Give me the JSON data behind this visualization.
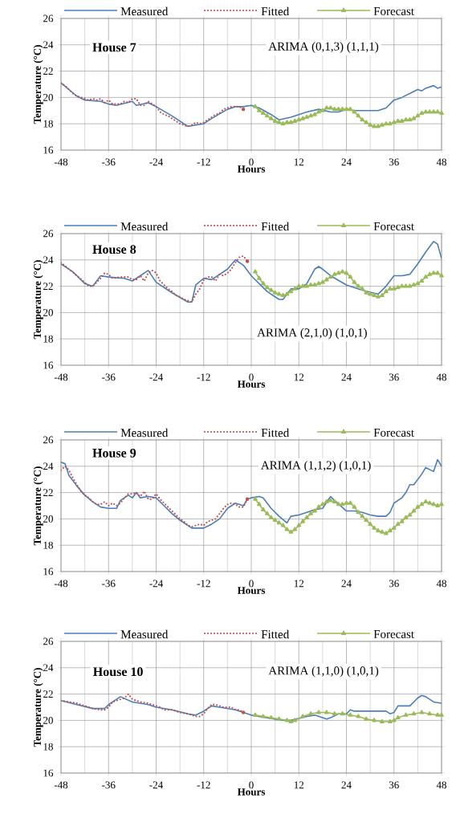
{
  "chart_data": [
    {
      "type": "line",
      "annotations": [
        "House 7",
        "ARIMA (0,1,3) (1,1,1)"
      ],
      "xlabel": "Hours",
      "ylabel": "Temperature (°C)",
      "xlim": [
        -48,
        48
      ],
      "ylim": [
        16,
        26
      ],
      "xticks": [
        -48,
        {
          "value": -42,
          "label": null
        },
        -36,
        {
          "value": -30,
          "label": null
        },
        -24,
        {
          "value": -18,
          "label": null
        },
        -12,
        {
          "value": -6,
          "label": null
        },
        0,
        {
          "value": 6,
          "label": null
        },
        12,
        {
          "value": 18,
          "label": null
        },
        24,
        {
          "value": 30,
          "label": null
        },
        36,
        {
          "value": 42,
          "label": null
        },
        48
      ],
      "yticks": [
        16,
        18,
        20,
        22,
        24,
        26
      ],
      "grid": true,
      "legend": "top",
      "series": [
        {
          "name": "Measured",
          "color": "#4a7ebb",
          "marker": "none",
          "line_style": "solid",
          "x": [
            -48,
            -44,
            -42,
            -38,
            -36,
            -34,
            -30,
            -29,
            -26,
            -24,
            -20,
            -16,
            -14,
            -12,
            -10,
            -6,
            -4,
            -2,
            0,
            2,
            5,
            7,
            10,
            14,
            17,
            20,
            22,
            24,
            26,
            28,
            32,
            34,
            36,
            38,
            40,
            42,
            43,
            44,
            46,
            47,
            48
          ],
          "values": [
            21.1,
            20.1,
            19.8,
            19.7,
            19.5,
            19.4,
            19.7,
            19.4,
            19.6,
            19.3,
            18.6,
            17.8,
            17.9,
            18.0,
            18.4,
            19.1,
            19.3,
            19.3,
            19.4,
            19.2,
            18.7,
            18.3,
            18.5,
            18.9,
            19.1,
            18.9,
            18.9,
            19.1,
            19.0,
            19.0,
            19.0,
            19.2,
            19.8,
            20.0,
            20.3,
            20.6,
            20.5,
            20.7,
            20.9,
            20.7,
            20.8
          ]
        },
        {
          "name": "Fitted",
          "color": "#c0504d",
          "marker": "none",
          "line_style": "dotted",
          "x": [
            -48,
            -47,
            -46,
            -45,
            -44,
            -43,
            -42,
            -41,
            -40,
            -39,
            -38,
            -37,
            -36,
            -35,
            -34,
            -33,
            -32,
            -31,
            -30,
            -29,
            -28,
            -27,
            -26,
            -25,
            -24,
            -23,
            -22,
            -21,
            -20,
            -19,
            -18,
            -17,
            -16,
            -15,
            -14,
            -13,
            -12,
            -11,
            -10,
            -9,
            -8,
            -7,
            -6,
            -5,
            -4,
            -3,
            -2
          ],
          "values": [
            21.1,
            20.9,
            20.6,
            20.3,
            20.1,
            20.0,
            19.9,
            19.8,
            19.9,
            19.8,
            19.9,
            19.6,
            19.8,
            19.5,
            19.5,
            19.5,
            19.7,
            19.6,
            19.9,
            19.9,
            19.4,
            19.4,
            19.7,
            19.5,
            19.3,
            18.9,
            18.7,
            18.6,
            18.4,
            18.2,
            18.0,
            17.9,
            17.8,
            17.9,
            18.1,
            18.0,
            18.1,
            18.3,
            18.5,
            18.7,
            18.8,
            19.1,
            19.2,
            19.3,
            19.3,
            19.3,
            19.1
          ]
        },
        {
          "name": "Forecast",
          "color": "#9bbb59",
          "marker": "triangle",
          "line_style": "solid",
          "x": [
            1,
            2,
            3,
            4,
            5,
            6,
            7,
            8,
            9,
            10,
            11,
            12,
            13,
            14,
            15,
            16,
            17,
            18,
            19,
            20,
            21,
            22,
            23,
            24,
            25,
            26,
            27,
            28,
            29,
            30,
            31,
            32,
            33,
            34,
            35,
            36,
            37,
            38,
            39,
            40,
            41,
            42,
            43,
            44,
            45,
            46,
            47,
            48
          ],
          "values": [
            19.3,
            19.0,
            18.8,
            18.6,
            18.4,
            18.2,
            18.1,
            18.0,
            18.1,
            18.1,
            18.2,
            18.3,
            18.4,
            18.5,
            18.6,
            18.7,
            18.9,
            19.0,
            19.2,
            19.2,
            19.1,
            19.1,
            19.1,
            19.1,
            19.1,
            18.9,
            18.6,
            18.3,
            18.1,
            17.9,
            17.8,
            17.8,
            17.9,
            18.0,
            18.0,
            18.1,
            18.2,
            18.2,
            18.3,
            18.3,
            18.4,
            18.6,
            18.8,
            18.9,
            18.9,
            18.9,
            18.9,
            18.8
          ]
        }
      ]
    },
    {
      "type": "line",
      "annotations": [
        "House 8",
        "ARIMA (2,1,0) (1,0,1)"
      ],
      "xlabel": "Hours",
      "ylabel": "Temperature (°C)",
      "xlim": [
        -48,
        48
      ],
      "ylim": [
        16,
        26
      ],
      "xticks": [
        -48,
        {
          "value": -42,
          "label": null
        },
        -36,
        {
          "value": -30,
          "label": null
        },
        -24,
        {
          "value": -18,
          "label": null
        },
        -12,
        {
          "value": -6,
          "label": null
        },
        0,
        {
          "value": 6,
          "label": null
        },
        12,
        {
          "value": 18,
          "label": null
        },
        24,
        {
          "value": 30,
          "label": null
        },
        36,
        {
          "value": 42,
          "label": null
        },
        48
      ],
      "yticks": [
        16,
        18,
        20,
        22,
        24,
        26
      ],
      "grid": true,
      "legend": "top",
      "series": [
        {
          "name": "Measured",
          "color": "#4a7ebb",
          "marker": "none",
          "line_style": "solid",
          "x": [
            -48,
            -45,
            -42,
            -40,
            -38,
            -36,
            -32,
            -30,
            -28,
            -26,
            -24,
            -20,
            -16,
            -15,
            -14,
            -12,
            -10,
            -6,
            -4,
            -2,
            0,
            2,
            4,
            6,
            7,
            8,
            10,
            12,
            14,
            16,
            17,
            18,
            20,
            24,
            28,
            32,
            34,
            36,
            38,
            40,
            42,
            44,
            46,
            47,
            48
          ],
          "values": [
            23.7,
            23.1,
            22.2,
            22.0,
            22.8,
            22.7,
            22.6,
            22.4,
            22.8,
            23.2,
            22.3,
            21.5,
            20.8,
            20.8,
            22.1,
            22.6,
            22.5,
            23.3,
            24.0,
            23.6,
            22.8,
            22.2,
            21.6,
            21.2,
            21.0,
            21.0,
            21.8,
            21.8,
            22.2,
            23.3,
            23.5,
            23.3,
            22.8,
            22.1,
            21.7,
            21.4,
            22.0,
            22.8,
            22.8,
            22.9,
            23.7,
            24.6,
            25.4,
            25.2,
            24.1
          ]
        },
        {
          "name": "Fitted",
          "color": "#c0504d",
          "marker": "none",
          "line_style": "dotted",
          "x": [
            -48,
            -46,
            -44,
            -42,
            -41,
            -40,
            -38,
            -37,
            -36,
            -35,
            -33,
            -31,
            -30,
            -29,
            -28,
            -27,
            -26,
            -25,
            -24,
            -23,
            -22,
            -21,
            -20,
            -19,
            -18,
            -17,
            -16,
            -15,
            -14,
            -13,
            -12,
            -11,
            -10,
            -9,
            -8,
            -7,
            -6,
            -5,
            -4,
            -3,
            -2,
            -1
          ],
          "values": [
            23.8,
            23.3,
            22.8,
            22.3,
            22.0,
            22.0,
            22.6,
            23.0,
            22.9,
            22.6,
            22.7,
            22.7,
            22.5,
            22.5,
            22.8,
            22.4,
            23.0,
            23.2,
            23.0,
            22.4,
            22.1,
            21.8,
            21.6,
            21.3,
            21.2,
            21.0,
            20.9,
            20.8,
            21.4,
            21.8,
            22.5,
            22.7,
            22.7,
            22.4,
            22.9,
            22.8,
            23.0,
            23.3,
            23.8,
            24.2,
            24.3,
            23.9
          ]
        },
        {
          "name": "Forecast",
          "color": "#9bbb59",
          "marker": "triangle",
          "line_style": "solid",
          "x": [
            1,
            2,
            3,
            4,
            5,
            6,
            7,
            8,
            9,
            10,
            11,
            12,
            13,
            14,
            15,
            16,
            17,
            18,
            19,
            20,
            21,
            22,
            23,
            24,
            25,
            26,
            27,
            28,
            29,
            30,
            31,
            32,
            33,
            34,
            35,
            36,
            37,
            38,
            39,
            40,
            41,
            42,
            43,
            44,
            45,
            46,
            47,
            48
          ],
          "values": [
            23.1,
            22.6,
            22.2,
            21.9,
            21.7,
            21.5,
            21.4,
            21.3,
            21.4,
            21.6,
            21.8,
            22.0,
            22.0,
            22.0,
            22.1,
            22.1,
            22.2,
            22.3,
            22.5,
            22.7,
            22.9,
            23.0,
            23.1,
            23.0,
            22.7,
            22.3,
            22.0,
            21.8,
            21.5,
            21.4,
            21.3,
            21.2,
            21.3,
            21.6,
            21.8,
            21.8,
            21.9,
            22.0,
            22.0,
            22.0,
            22.1,
            22.2,
            22.4,
            22.7,
            22.9,
            23.0,
            23.0,
            22.8
          ]
        }
      ]
    },
    {
      "type": "line",
      "annotations": [
        "House 9",
        "ARIMA (1,1,2) (1,0,1)"
      ],
      "xlabel": "Hours",
      "ylabel": "Temperature (°C)",
      "xlim": [
        -48,
        48
      ],
      "ylim": [
        16,
        26
      ],
      "xticks": [
        -48,
        {
          "value": -42,
          "label": null
        },
        -36,
        {
          "value": -30,
          "label": null
        },
        -24,
        {
          "value": -18,
          "label": null
        },
        -12,
        {
          "value": -6,
          "label": null
        },
        0,
        {
          "value": 6,
          "label": null
        },
        12,
        {
          "value": 18,
          "label": null
        },
        24,
        {
          "value": 30,
          "label": null
        },
        36,
        {
          "value": 42,
          "label": null
        },
        48
      ],
      "yticks": [
        16,
        18,
        20,
        22,
        24,
        26
      ],
      "grid": true,
      "legend": "top",
      "series": [
        {
          "name": "Measured",
          "color": "#4a7ebb",
          "marker": "none",
          "line_style": "solid",
          "x": [
            -48,
            -47,
            -46,
            -44,
            -42,
            -40,
            -38,
            -36,
            -34,
            -33,
            -31,
            -30,
            -29,
            -28,
            -26,
            -24,
            -22,
            -20,
            -18,
            -16,
            -15,
            -12,
            -10,
            -8,
            -6,
            -4,
            -2,
            -1,
            0,
            2,
            3,
            5,
            7,
            9,
            10,
            12,
            14,
            16,
            18,
            20,
            21,
            24,
            26,
            28,
            30,
            32,
            34,
            35,
            36,
            38,
            39,
            40,
            41,
            43,
            44,
            46,
            47,
            48
          ],
          "values": [
            24.3,
            24.2,
            23.3,
            22.5,
            21.8,
            21.3,
            20.9,
            20.8,
            20.8,
            21.4,
            21.8,
            21.6,
            22.0,
            21.6,
            21.7,
            21.6,
            21.0,
            20.4,
            19.9,
            19.5,
            19.3,
            19.3,
            19.6,
            20.0,
            20.8,
            21.2,
            21.0,
            21.5,
            21.6,
            21.7,
            21.6,
            20.8,
            20.2,
            19.7,
            20.2,
            20.3,
            20.5,
            20.7,
            20.8,
            21.7,
            21.4,
            20.6,
            20.6,
            20.5,
            20.3,
            20.2,
            20.2,
            20.5,
            21.2,
            21.6,
            22.0,
            22.6,
            22.6,
            23.4,
            23.9,
            23.6,
            24.5,
            24.0
          ]
        },
        {
          "name": "Fitted",
          "color": "#c0504d",
          "marker": "none",
          "line_style": "dotted",
          "x": [
            -48,
            -47,
            -46,
            -45,
            -44,
            -43,
            -42,
            -41,
            -40,
            -39,
            -38,
            -37,
            -36,
            -35,
            -34,
            -33,
            -32,
            -31,
            -30,
            -29,
            -28,
            -27,
            -26,
            -25,
            -24,
            -23,
            -22,
            -21,
            -20,
            -19,
            -18,
            -17,
            -16,
            -15,
            -14,
            -13,
            -12,
            -11,
            -10,
            -9,
            -8,
            -7,
            -6,
            -5,
            -4,
            -3,
            -2,
            -1
          ],
          "values": [
            23.7,
            24.0,
            23.7,
            23.1,
            22.6,
            22.1,
            21.8,
            21.6,
            21.3,
            21.1,
            21.1,
            21.3,
            21.0,
            21.2,
            21.0,
            21.2,
            21.6,
            21.9,
            21.9,
            22.0,
            21.7,
            22.1,
            21.5,
            21.5,
            21.9,
            21.5,
            21.2,
            20.9,
            20.6,
            20.3,
            20.0,
            19.8,
            19.5,
            19.4,
            19.5,
            19.6,
            19.5,
            19.8,
            19.9,
            20.0,
            20.4,
            20.8,
            21.1,
            21.2,
            21.1,
            20.9,
            20.9,
            21.5
          ]
        },
        {
          "name": "Forecast",
          "color": "#9bbb59",
          "marker": "triangle",
          "line_style": "solid",
          "x": [
            1,
            2,
            3,
            4,
            5,
            6,
            7,
            8,
            9,
            10,
            11,
            12,
            13,
            14,
            15,
            16,
            17,
            18,
            19,
            20,
            21,
            22,
            23,
            24,
            25,
            26,
            27,
            28,
            29,
            30,
            31,
            32,
            33,
            34,
            35,
            36,
            37,
            38,
            39,
            40,
            41,
            42,
            43,
            44,
            45,
            46,
            47,
            48
          ],
          "values": [
            21.5,
            21.1,
            20.7,
            20.4,
            20.1,
            19.9,
            19.7,
            19.5,
            19.2,
            19.0,
            19.2,
            19.5,
            19.8,
            20.1,
            20.4,
            20.6,
            20.9,
            21.1,
            21.3,
            21.4,
            21.3,
            21.1,
            21.1,
            21.2,
            21.2,
            20.9,
            20.5,
            20.2,
            19.9,
            19.6,
            19.3,
            19.1,
            19.0,
            18.9,
            19.1,
            19.3,
            19.6,
            19.8,
            20.1,
            20.3,
            20.6,
            20.9,
            21.1,
            21.3,
            21.2,
            21.1,
            21.0,
            21.1
          ]
        }
      ]
    },
    {
      "type": "line",
      "annotations": [
        "House 10",
        "ARIMA (1,1,0) (1,0,1)"
      ],
      "xlabel": "Hours",
      "ylabel": "Temperature (°C)",
      "xlim": [
        -48,
        48
      ],
      "ylim": [
        16,
        26
      ],
      "xticks": [
        -48,
        {
          "value": -42,
          "label": null
        },
        -36,
        {
          "value": -30,
          "label": null
        },
        -24,
        {
          "value": -18,
          "label": null
        },
        -12,
        {
          "value": -6,
          "label": null
        },
        0,
        {
          "value": 6,
          "label": null
        },
        12,
        {
          "value": 18,
          "label": null
        },
        24,
        {
          "value": 30,
          "label": null
        },
        36,
        {
          "value": 42,
          "label": null
        },
        48
      ],
      "yticks": [
        16,
        18,
        20,
        22,
        24,
        26
      ],
      "grid": true,
      "legend": "top",
      "series": [
        {
          "name": "Measured",
          "color": "#4a7ebb",
          "marker": "none",
          "line_style": "solid",
          "x": [
            -48,
            -44,
            -40,
            -37,
            -36,
            -34,
            -33,
            -30,
            -26,
            -24,
            -20,
            -16,
            -14,
            -12,
            -10,
            -8,
            -4,
            -2,
            0,
            4,
            8,
            10,
            14,
            16,
            18,
            19,
            20,
            22,
            24,
            25,
            26,
            28,
            32,
            34,
            35,
            36,
            37,
            38,
            40,
            42,
            43,
            44,
            46,
            48
          ],
          "values": [
            21.5,
            21.2,
            20.9,
            20.9,
            21.2,
            21.6,
            21.8,
            21.4,
            21.2,
            21.0,
            20.8,
            20.5,
            20.4,
            20.7,
            21.1,
            21.0,
            20.8,
            20.6,
            20.4,
            20.2,
            20.0,
            20.0,
            20.3,
            20.4,
            20.2,
            20.1,
            20.2,
            20.5,
            20.5,
            20.8,
            20.7,
            20.7,
            20.7,
            20.7,
            20.5,
            20.6,
            21.1,
            21.1,
            21.1,
            21.7,
            21.9,
            21.8,
            21.4,
            21.3
          ]
        },
        {
          "name": "Fitted",
          "color": "#c0504d",
          "marker": "none",
          "line_style": "dotted",
          "x": [
            -48,
            -46,
            -44,
            -43,
            -42,
            -41,
            -40,
            -38,
            -37,
            -36,
            -35,
            -34,
            -33,
            -32,
            -31,
            -30,
            -29,
            -28,
            -26,
            -24,
            -23,
            -22,
            -20,
            -19,
            -18,
            -16,
            -15,
            -14,
            -13,
            -12,
            -11,
            -10,
            -9,
            -8,
            -7,
            -6,
            -5,
            -4,
            -3,
            -2
          ],
          "values": [
            21.5,
            21.4,
            21.3,
            21.2,
            21.1,
            21.0,
            20.9,
            20.8,
            20.8,
            21.0,
            21.4,
            21.5,
            21.6,
            21.7,
            22.0,
            21.6,
            21.5,
            21.4,
            21.3,
            21.1,
            21.0,
            20.8,
            20.8,
            20.7,
            20.6,
            20.5,
            20.4,
            20.3,
            20.3,
            20.5,
            20.9,
            21.2,
            21.2,
            21.1,
            21.0,
            21.0,
            21.0,
            20.8,
            20.8,
            20.6
          ]
        },
        {
          "name": "Forecast",
          "color": "#9bbb59",
          "marker": "triangle",
          "line_style": "solid",
          "x": [
            1,
            3,
            5,
            7,
            9,
            10,
            11,
            13,
            15,
            17,
            19,
            21,
            23,
            25,
            27,
            29,
            31,
            33,
            35,
            36,
            37,
            39,
            41,
            43,
            45,
            47,
            48
          ],
          "values": [
            20.4,
            20.3,
            20.2,
            20.1,
            20.0,
            19.9,
            20.0,
            20.3,
            20.5,
            20.6,
            20.6,
            20.5,
            20.5,
            20.4,
            20.3,
            20.1,
            20.0,
            19.9,
            19.9,
            20.0,
            20.2,
            20.4,
            20.5,
            20.6,
            20.5,
            20.4,
            20.4
          ]
        }
      ]
    }
  ]
}
